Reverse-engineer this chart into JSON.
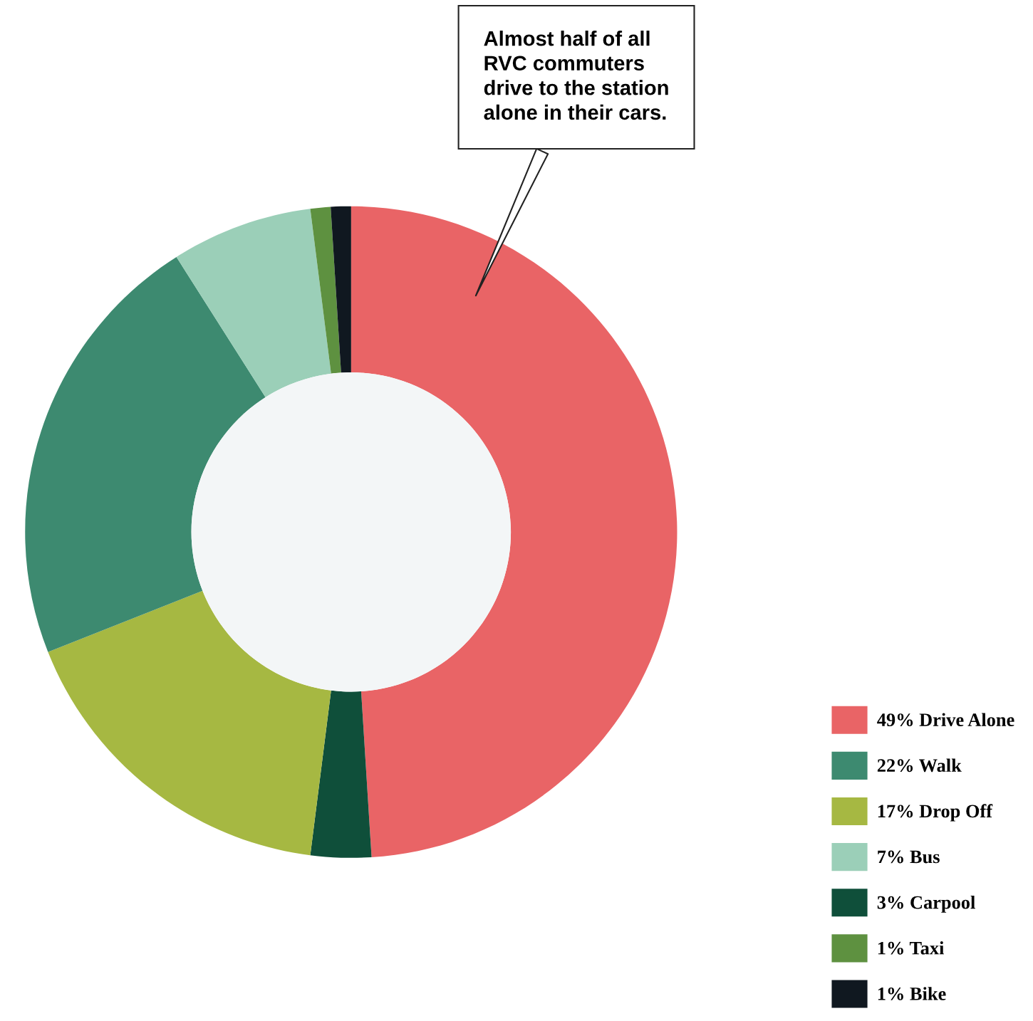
{
  "chart_data": {
    "type": "donut",
    "categories": [
      "Drive Alone",
      "Carpool",
      "Drop Off",
      "Walk",
      "Bus",
      "Taxi",
      "Bike"
    ],
    "values": [
      49,
      3,
      17,
      22,
      7,
      1,
      1
    ],
    "value_labels": [
      "49%",
      "3%",
      "17%",
      "22%",
      "7%",
      "1%",
      "1%"
    ],
    "colors": [
      "#e96466",
      "#0f4f3a",
      "#a6b842",
      "#3d8a70",
      "#9bcfb8",
      "#5e9140",
      "#101820"
    ],
    "annotations": [
      "Almost half of all\nRVC commuters\ndrive to the station\nalone in their cars."
    ],
    "legend": "bottom right"
  }
}
